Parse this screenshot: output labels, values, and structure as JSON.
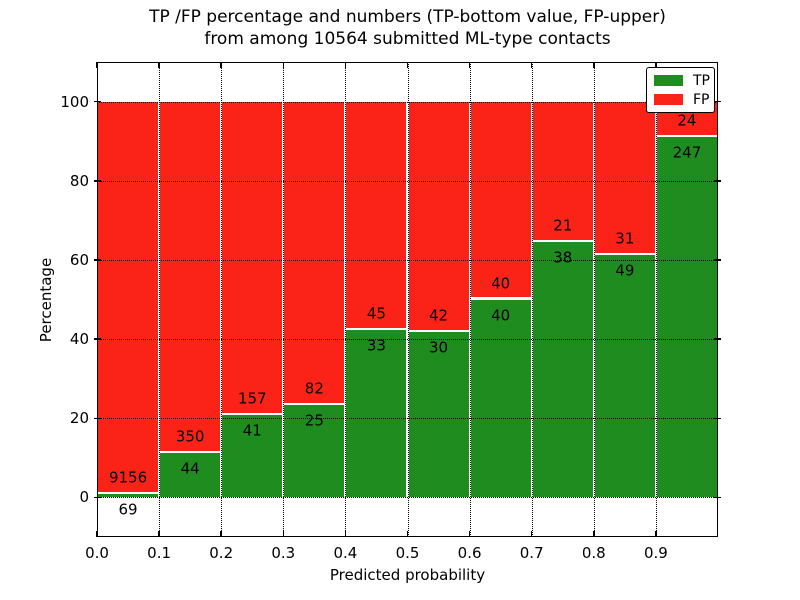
{
  "chart_data": {
    "type": "bar",
    "stacked": true,
    "title_line1": "TP /FP percentage and numbers (TP-bottom value, FP-upper)",
    "title_line2": "from among 10564 submitted ML-type contacts",
    "xlabel": "Predicted probability",
    "ylabel": "Percentage",
    "xlim": [
      0.0,
      1.0
    ],
    "ylim": [
      -10,
      110
    ],
    "x_ticks": [
      "0.0",
      "0.1",
      "0.2",
      "0.3",
      "0.4",
      "0.5",
      "0.6",
      "0.7",
      "0.8",
      "0.9"
    ],
    "y_ticks": [
      0,
      20,
      40,
      60,
      80,
      100
    ],
    "grid": "dotted",
    "bar_heights_unit": "percent of bin total, stacked to 100",
    "total_contacts": 10564,
    "series": [
      {
        "name": "TP",
        "color": "#1e8c1e",
        "position": "bottom"
      },
      {
        "name": "FP",
        "color": "#fb2318",
        "position": "top"
      }
    ],
    "legend": {
      "position": "upper right",
      "entries": [
        "TP",
        "FP"
      ]
    },
    "bars": [
      {
        "bin_start": 0.0,
        "bin_end": 0.1,
        "tp": 69,
        "fp": 9156
      },
      {
        "bin_start": 0.1,
        "bin_end": 0.2,
        "tp": 44,
        "fp": 350
      },
      {
        "bin_start": 0.2,
        "bin_end": 0.3,
        "tp": 41,
        "fp": 157
      },
      {
        "bin_start": 0.3,
        "bin_end": 0.4,
        "tp": 25,
        "fp": 82
      },
      {
        "bin_start": 0.4,
        "bin_end": 0.5,
        "tp": 33,
        "fp": 45
      },
      {
        "bin_start": 0.5,
        "bin_end": 0.6,
        "tp": 30,
        "fp": 42
      },
      {
        "bin_start": 0.6,
        "bin_end": 0.7,
        "tp": 40,
        "fp": 40
      },
      {
        "bin_start": 0.7,
        "bin_end": 0.8,
        "tp": 38,
        "fp": 21
      },
      {
        "bin_start": 0.8,
        "bin_end": 0.9,
        "tp": 49,
        "fp": 31
      },
      {
        "bin_start": 0.9,
        "bin_end": 1.0,
        "tp": 247,
        "fp": 24
      }
    ]
  }
}
